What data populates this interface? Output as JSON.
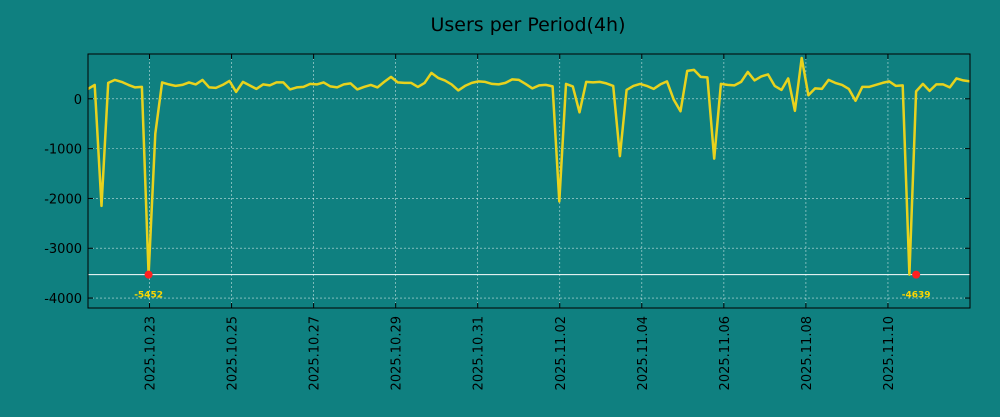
{
  "chart_data": {
    "type": "line",
    "title": "Users per Period(4h)",
    "xlabel": "",
    "ylabel": "",
    "x_start": "2025.10.21 12:00",
    "x_end": "2025.11.12 00:00",
    "xticks": [
      "2025.10.23",
      "2025.10.25",
      "2025.10.27",
      "2025.10.29",
      "2025.10.31",
      "2025.11.02",
      "2025.11.04",
      "2025.11.06",
      "2025.11.08",
      "2025.11.10"
    ],
    "ylim": [
      -4200,
      900
    ],
    "yticks": [
      0,
      -1000,
      -2000,
      -3000,
      -4000
    ],
    "grid": true,
    "threshold_line": -3530,
    "series": [
      {
        "color": "#e8d21d",
        "values": [
          200,
          280,
          -2150,
          320,
          380,
          340,
          280,
          230,
          240,
          -3530,
          -700,
          330,
          290,
          260,
          280,
          330,
          290,
          380,
          230,
          220,
          280,
          360,
          140,
          340,
          270,
          200,
          290,
          270,
          330,
          330,
          190,
          230,
          240,
          300,
          290,
          330,
          250,
          230,
          290,
          310,
          190,
          240,
          280,
          230,
          340,
          440,
          330,
          320,
          320,
          240,
          320,
          520,
          420,
          370,
          290,
          170,
          260,
          320,
          350,
          340,
          300,
          290,
          320,
          390,
          380,
          300,
          210,
          270,
          280,
          250,
          -2060,
          300,
          250,
          -270,
          340,
          330,
          340,
          310,
          260,
          -1150,
          180,
          260,
          300,
          260,
          200,
          290,
          350,
          -20,
          -250,
          560,
          580,
          440,
          430,
          -1200,
          300,
          280,
          270,
          340,
          540,
          370,
          450,
          490,
          260,
          180,
          410,
          -240,
          820,
          70,
          210,
          200,
          380,
          320,
          280,
          200,
          -40,
          240,
          240,
          280,
          320,
          350,
          260,
          270,
          -3530,
          150,
          300,
          160,
          290,
          290,
          230,
          410,
          370,
          350
        ],
        "markers": [
          {
            "index": 9,
            "value": -3530,
            "label": "-5452"
          },
          {
            "index": 123,
            "value": -3530,
            "label": "-4639"
          }
        ]
      }
    ]
  },
  "colors": {
    "background": "#0f8080",
    "line": "#e8d21d",
    "marker": "#ff2020",
    "annotation": "#ffd700",
    "threshold": "#ffffff",
    "grid": "#ffffff"
  }
}
